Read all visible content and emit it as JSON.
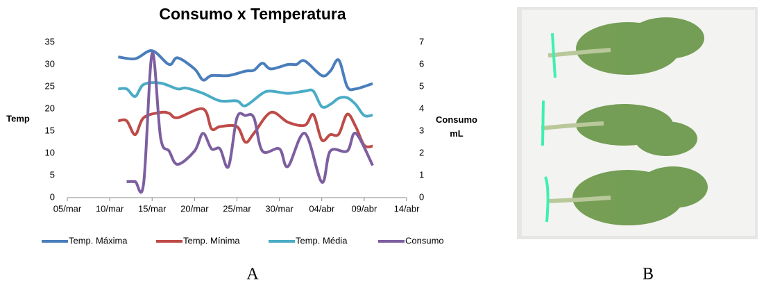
{
  "chart_data": {
    "type": "line",
    "title": "Consumo x Temperatura",
    "ylabel": "Temp",
    "y2label": "Consumo mL",
    "xlim": [
      "05/mar",
      "14/abr"
    ],
    "xticks": [
      "05/mar",
      "10/mar",
      "15/mar",
      "20/mar",
      "25/mar",
      "30/mar",
      "04/abr",
      "09/abr",
      "14/abr"
    ],
    "ylim": [
      0,
      35
    ],
    "yticks": [
      0,
      5,
      10,
      15,
      20,
      25,
      30,
      35
    ],
    "y2lim": [
      0,
      7
    ],
    "y2ticks": [
      0,
      1,
      2,
      3,
      4,
      5,
      6,
      7
    ],
    "grid": false,
    "legend": "bottom",
    "series": [
      {
        "name": "Temp. Máxima",
        "color": "#4a7ebb",
        "x": [
          "11/mar",
          "13/mar",
          "15/mar",
          "17/mar",
          "18/mar",
          "20/mar",
          "21/mar",
          "22/mar",
          "24/mar",
          "26/mar",
          "27/mar",
          "28/mar",
          "29/mar",
          "31/mar",
          "01/abr",
          "02/abr",
          "04/abr",
          "05/abr",
          "06/abr",
          "07/abr",
          "08/abr",
          "10/abr"
        ],
        "values": [
          31.7,
          31.3,
          33.1,
          30,
          31.5,
          29,
          26.5,
          27.5,
          27.5,
          28.5,
          28.7,
          30.3,
          29,
          30,
          30,
          30.8,
          27.5,
          28.5,
          31,
          25,
          24.5,
          25.7
        ]
      },
      {
        "name": "Temp. Mínima",
        "color": "#be4b48",
        "x": [
          "11/mar",
          "12/mar",
          "13/mar",
          "14/mar",
          "16/mar",
          "17/mar",
          "18/mar",
          "21/mar",
          "22/mar",
          "23/mar",
          "25/mar",
          "26/mar",
          "27/mar",
          "29/mar",
          "31/mar",
          "02/abr",
          "03/abr",
          "04/abr",
          "05/abr",
          "06/abr",
          "07/abr",
          "08/abr",
          "09/abr",
          "10/abr"
        ],
        "values": [
          17.3,
          17.3,
          14.2,
          18,
          19.2,
          19,
          18,
          20,
          15.5,
          16,
          16,
          12.5,
          14.5,
          19.2,
          17,
          16.3,
          18.7,
          13,
          14.2,
          14.3,
          18.8,
          16,
          11.8,
          11.6
        ]
      },
      {
        "name": "Temp. Média",
        "color": "#4bacc6",
        "x": [
          "11/mar",
          "12/mar",
          "13/mar",
          "14/mar",
          "16/mar",
          "18/mar",
          "19/mar",
          "21/mar",
          "23/mar",
          "25/mar",
          "26/mar",
          "28/mar",
          "29/mar",
          "31/mar",
          "02/abr",
          "03/abr",
          "04/abr",
          "05/abr",
          "06/abr",
          "07/abr",
          "08/abr",
          "09/abr",
          "10/abr"
        ],
        "values": [
          24.5,
          24.5,
          22.8,
          25.5,
          25.8,
          24.5,
          24.7,
          23.5,
          21.8,
          21.8,
          20.7,
          23.5,
          24,
          23.5,
          24,
          24,
          20.5,
          21,
          22.4,
          22.5,
          21,
          18.5,
          18.6
        ]
      },
      {
        "name": "Consumo",
        "color": "#7d5fa0",
        "axis": "y2",
        "x": [
          "12/mar",
          "13/mar",
          "14/mar",
          "15/mar",
          "16/mar",
          "17/mar",
          "18/mar",
          "20/mar",
          "21/mar",
          "22/mar",
          "23/mar",
          "24/mar",
          "25/mar",
          "26/mar",
          "27/mar",
          "28/mar",
          "30/mar",
          "31/mar",
          "02/abr",
          "04/abr",
          "05/abr",
          "07/abr",
          "08/abr",
          "10/abr"
        ],
        "values": [
          0.72,
          0.72,
          0.65,
          6.5,
          2.7,
          2.1,
          1.5,
          2.1,
          2.9,
          2.2,
          2.2,
          1.4,
          3.6,
          3.7,
          3.6,
          2.1,
          2.2,
          1.4,
          2.9,
          0.7,
          2.1,
          2.1,
          2.9,
          1.45
        ]
      }
    ]
  },
  "panels": {
    "a": "A",
    "b": "B"
  }
}
